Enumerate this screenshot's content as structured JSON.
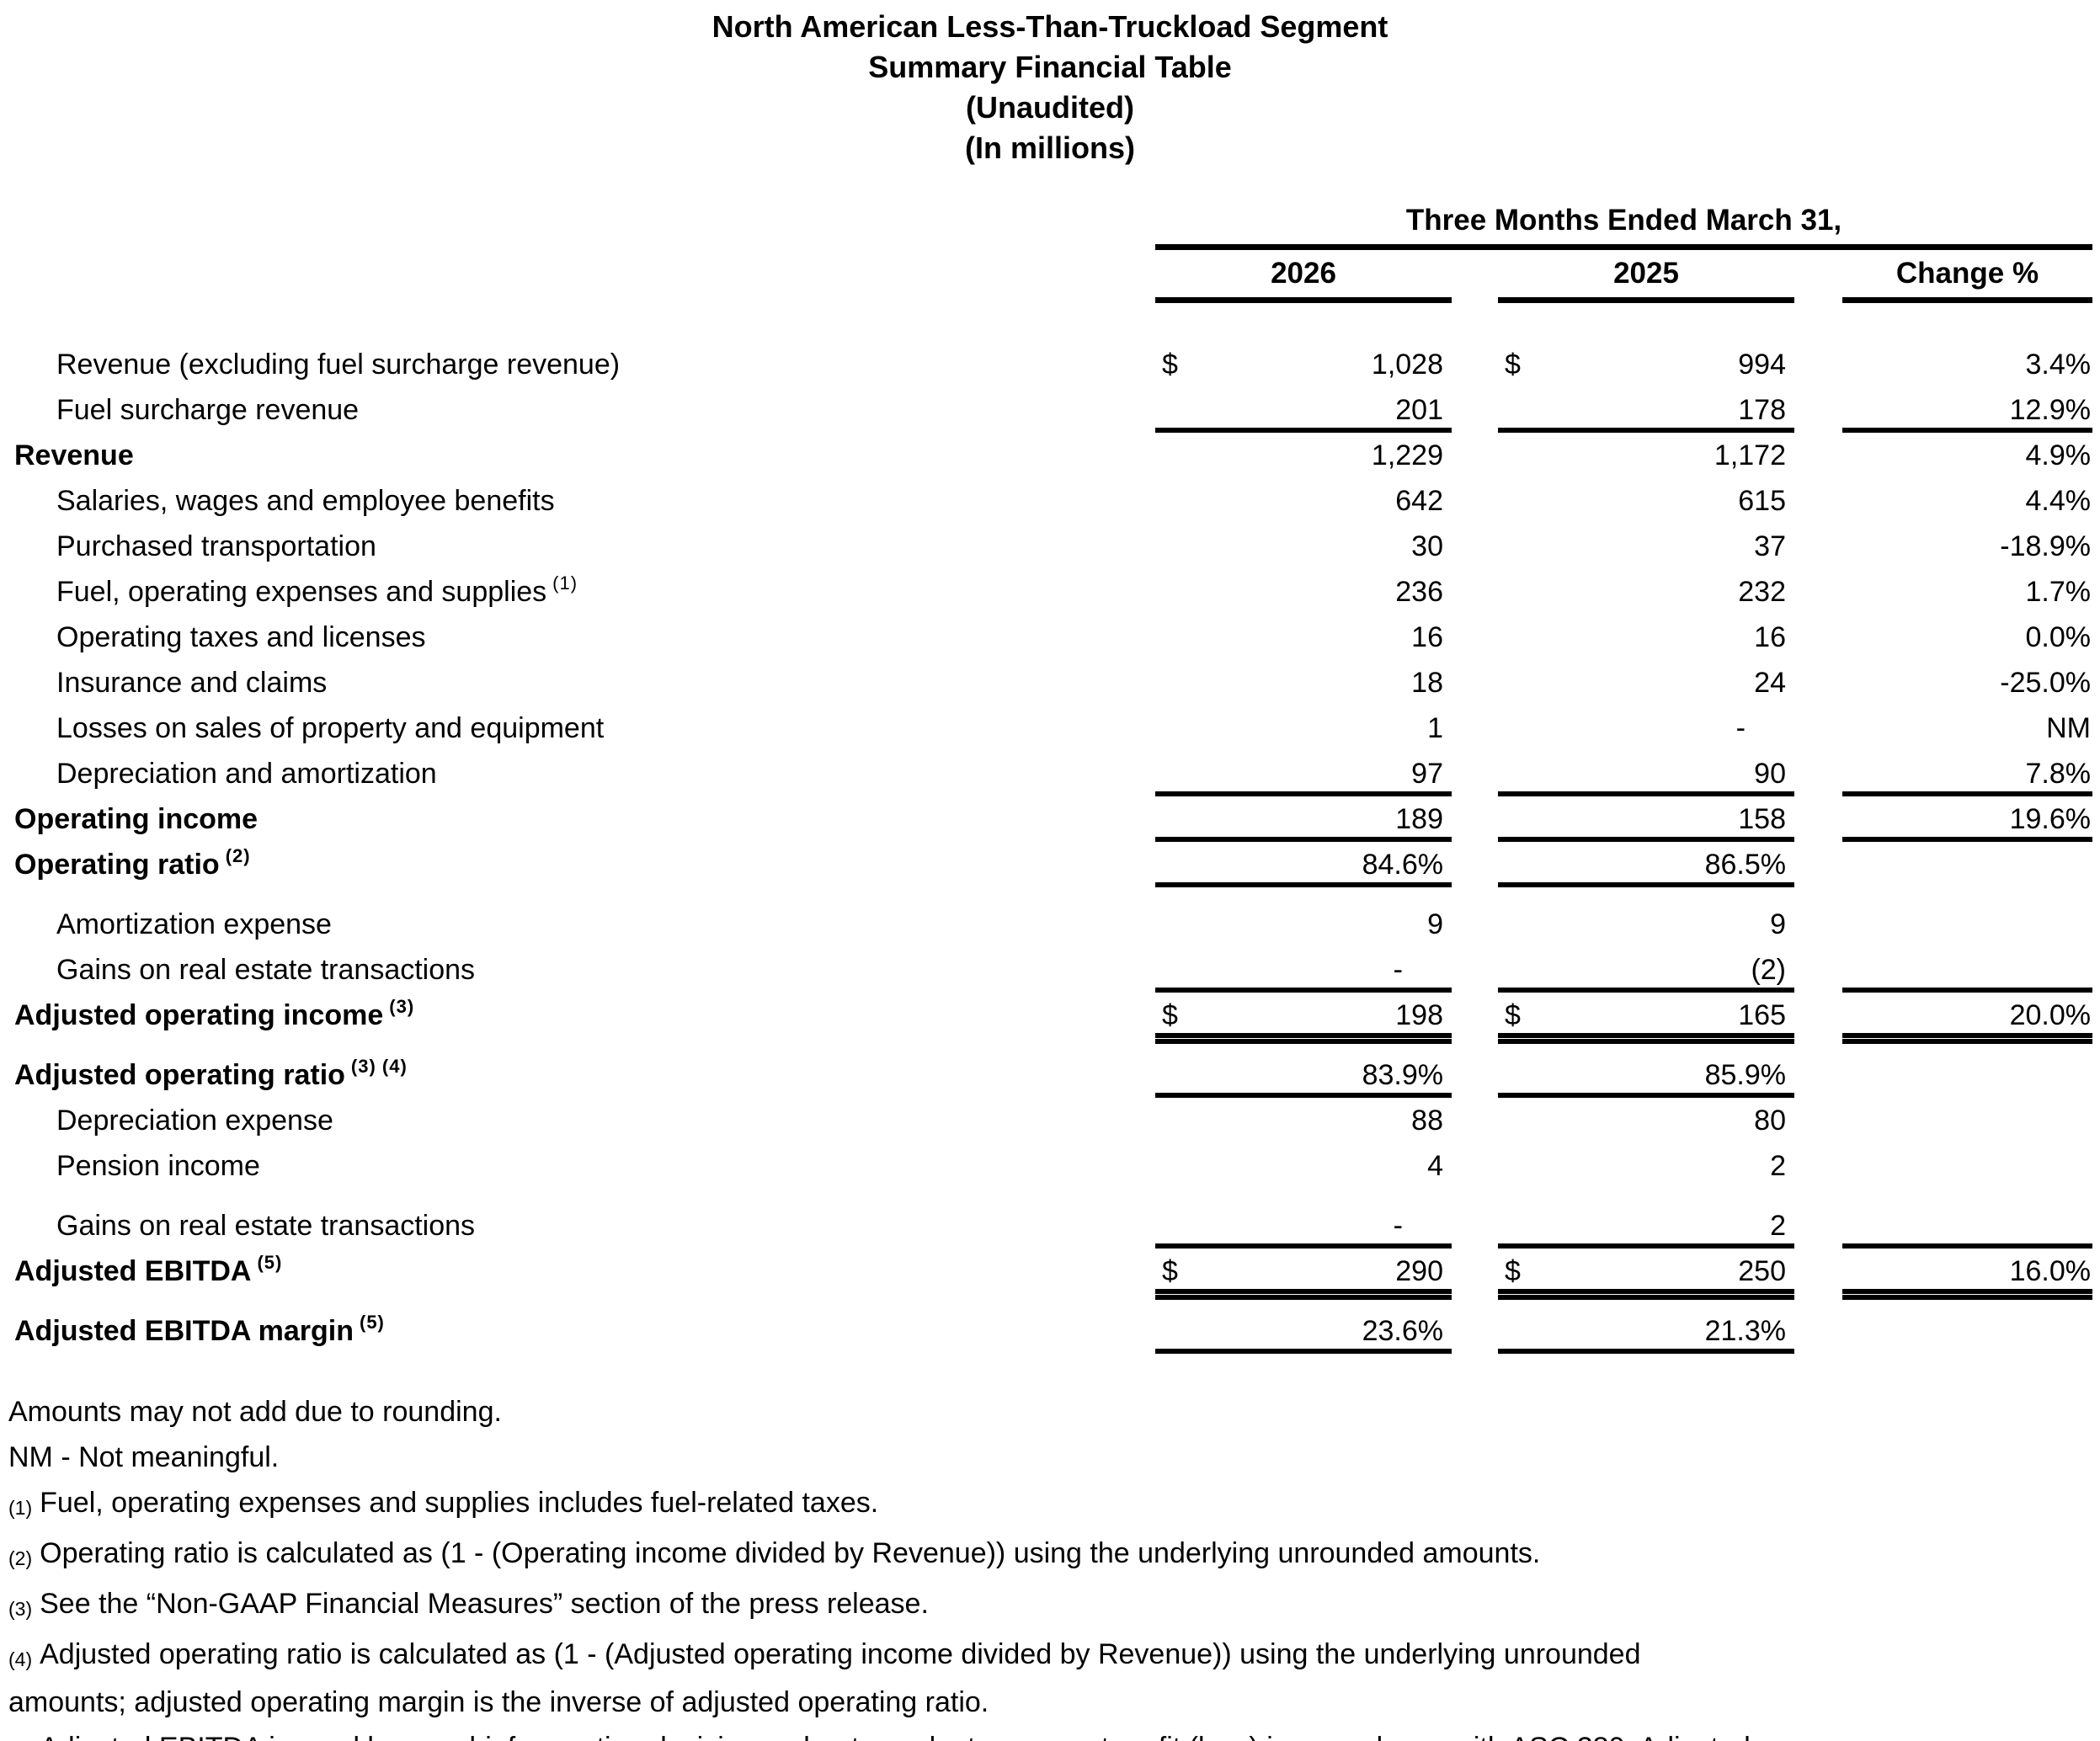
{
  "title": {
    "line1": "North American Less-Than-Truckload Segment",
    "line2": "Summary Financial Table",
    "line3": "(Unaudited)",
    "line4": "(In millions)"
  },
  "table": {
    "period_header": "Three Months Ended March 31,",
    "columns": [
      "2026",
      "2025",
      "Change %"
    ],
    "currency_symbol": "$",
    "rows": [
      {
        "label": "Revenue (excluding fuel surcharge revenue)",
        "sup": "",
        "style": "detail",
        "dollar": true,
        "v2026": "1,028",
        "v2025": "994",
        "change": "3.4%",
        "rule": "none",
        "rule_change": "none",
        "gap": false
      },
      {
        "label": "Fuel surcharge revenue",
        "sup": "",
        "style": "detail",
        "dollar": false,
        "v2026": "201",
        "v2025": "178",
        "change": "12.9%",
        "rule": "single",
        "rule_change": "single",
        "gap": false
      },
      {
        "label": "Revenue",
        "sup": "",
        "style": "total",
        "dollar": false,
        "v2026": "1,229",
        "v2025": "1,172",
        "change": "4.9%",
        "rule": "none",
        "rule_change": "none",
        "gap": false
      },
      {
        "label": "Salaries, wages and employee benefits",
        "sup": "",
        "style": "detail",
        "dollar": false,
        "v2026": "642",
        "v2025": "615",
        "change": "4.4%",
        "rule": "none",
        "rule_change": "none",
        "gap": false
      },
      {
        "label": "Purchased transportation",
        "sup": "",
        "style": "detail",
        "dollar": false,
        "v2026": "30",
        "v2025": "37",
        "change": "-18.9%",
        "rule": "none",
        "rule_change": "none",
        "gap": false
      },
      {
        "label": "Fuel, operating expenses and supplies",
        "sup": "(1)",
        "style": "detail",
        "dollar": false,
        "v2026": "236",
        "v2025": "232",
        "change": "1.7%",
        "rule": "none",
        "rule_change": "none",
        "gap": false
      },
      {
        "label": "Operating taxes and licenses",
        "sup": "",
        "style": "detail",
        "dollar": false,
        "v2026": "16",
        "v2025": "16",
        "change": "0.0%",
        "rule": "none",
        "rule_change": "none",
        "gap": false
      },
      {
        "label": "Insurance and claims",
        "sup": "",
        "style": "detail",
        "dollar": false,
        "v2026": "18",
        "v2025": "24",
        "change": "-25.0%",
        "rule": "none",
        "rule_change": "none",
        "gap": false
      },
      {
        "label": "Losses on sales of property and equipment",
        "sup": "",
        "style": "detail",
        "dollar": false,
        "v2026": "1",
        "v2025": "-",
        "change": "NM",
        "rule": "none",
        "rule_change": "none",
        "gap": false
      },
      {
        "label": "Depreciation and amortization",
        "sup": "",
        "style": "detail",
        "dollar": false,
        "v2026": "97",
        "v2025": "90",
        "change": "7.8%",
        "rule": "single",
        "rule_change": "single",
        "gap": false
      },
      {
        "label": "Operating income",
        "sup": "",
        "style": "total",
        "dollar": false,
        "v2026": "189",
        "v2025": "158",
        "change": "19.6%",
        "rule": "single",
        "rule_change": "single",
        "gap": false
      },
      {
        "label": "Operating ratio",
        "sup": "(2)",
        "style": "total",
        "dollar": false,
        "v2026": "84.6%",
        "v2025": "86.5%",
        "change": "",
        "rule": "single",
        "rule_change": "none",
        "gap": false
      },
      {
        "label": "Amortization expense",
        "sup": "",
        "style": "detail",
        "dollar": false,
        "v2026": "9",
        "v2025": "9",
        "change": "",
        "rule": "none",
        "rule_change": "none",
        "gap": true
      },
      {
        "label": "Gains on real estate transactions",
        "sup": "",
        "style": "detail",
        "dollar": false,
        "v2026": "-",
        "v2025": "(2)",
        "change": "",
        "rule": "single",
        "rule_change": "single",
        "gap": false
      },
      {
        "label": "Adjusted operating income",
        "sup": "(3)",
        "style": "total",
        "dollar": true,
        "v2026": "198",
        "v2025": "165",
        "change": "20.0%",
        "rule": "double",
        "rule_change": "double",
        "gap": false
      },
      {
        "label": "Adjusted operating ratio",
        "sup": "(3) (4)",
        "style": "total",
        "dollar": false,
        "v2026": "83.9%",
        "v2025": "85.9%",
        "change": "",
        "rule": "single",
        "rule_change": "none",
        "gap": true
      },
      {
        "label": "Depreciation expense",
        "sup": "",
        "style": "detail",
        "dollar": false,
        "v2026": "88",
        "v2025": "80",
        "change": "",
        "rule": "none",
        "rule_change": "none",
        "gap": false
      },
      {
        "label": "Pension income",
        "sup": "",
        "style": "detail",
        "dollar": false,
        "v2026": "4",
        "v2025": "2",
        "change": "",
        "rule": "none",
        "rule_change": "none",
        "gap": false
      },
      {
        "label": "Gains on real estate transactions",
        "sup": "",
        "style": "detail",
        "dollar": false,
        "v2026": "-",
        "v2025": "2",
        "change": "",
        "rule": "single",
        "rule_change": "single",
        "gap": true
      },
      {
        "label": "Adjusted EBITDA",
        "sup": "(5)",
        "style": "total",
        "dollar": true,
        "v2026": "290",
        "v2025": "250",
        "change": "16.0%",
        "rule": "double",
        "rule_change": "double",
        "gap": false
      },
      {
        "label": "Adjusted EBITDA margin",
        "sup": "(5)",
        "style": "total",
        "dollar": false,
        "v2026": "23.6%",
        "v2025": "21.3%",
        "change": "",
        "rule": "single",
        "rule_change": "none",
        "gap": true
      }
    ]
  },
  "footnotes": [
    {
      "marker": "",
      "text": "Amounts may not add due to rounding."
    },
    {
      "marker": "",
      "text": "NM - Not meaningful."
    },
    {
      "marker": "(1)",
      "text": "Fuel, operating expenses and supplies includes fuel-related taxes."
    },
    {
      "marker": "(2)",
      "text": "Operating ratio is calculated as (1 - (Operating income divided by Revenue)) using the underlying unrounded amounts."
    },
    {
      "marker": "(3)",
      "text": "See the “Non-GAAP Financial Measures” section of the press release."
    },
    {
      "marker": "(4)",
      "text": "Adjusted operating ratio is calculated as (1 - (Adjusted operating income divided by Revenue)) using the underlying unrounded amounts; adjusted operating margin is the inverse of adjusted operating ratio."
    },
    {
      "marker": "(5)",
      "text": "Adjusted EBITDA is used by our chief operating decision maker to evaluate segment profit (loss) in accordance with ASC 280. Adjusted EBITDA margin is calculated as Adjusted EBITDA divided by Revenue using the underlying unrounded amounts."
    }
  ],
  "colors": {
    "text": "#000000",
    "background": "#ffffff",
    "rule": "#000000"
  }
}
